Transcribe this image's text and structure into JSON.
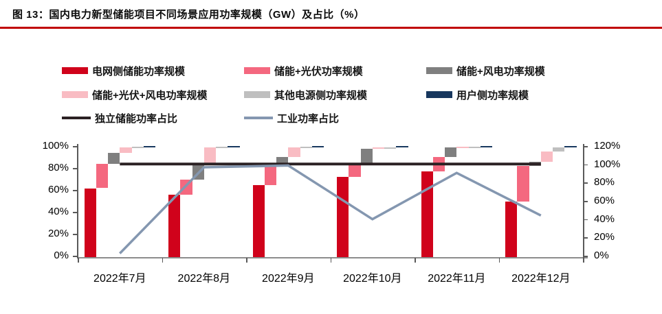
{
  "title": "图 13：国内电力新型储能项目不同场景应用功率规模（GW）及占比（%）",
  "accent_rule_color": "#c00000",
  "legend": {
    "items": [
      {
        "key": "grid-side",
        "label": "电网侧储能功率规模",
        "color": "#d0021b",
        "type": "bar"
      },
      {
        "key": "storage-pv",
        "label": "储能+光伏功率规模",
        "color": "#f4687f",
        "type": "bar"
      },
      {
        "key": "storage-wind",
        "label": "储能+风电功率规模",
        "color": "#7f7f7f",
        "type": "bar"
      },
      {
        "key": "storage-pv-wind",
        "label": "储能+光伏+风电功率规模",
        "color": "#f9bcc3",
        "type": "bar"
      },
      {
        "key": "other-source",
        "label": "其他电源侧功率规模",
        "color": "#bfbfbf",
        "type": "bar"
      },
      {
        "key": "user-side",
        "label": "用户侧功率规模",
        "color": "#17375e",
        "type": "bar"
      },
      {
        "key": "independent-share",
        "label": "独立储能功率占比",
        "color": "#2b2123",
        "type": "line"
      },
      {
        "key": "industry-share",
        "label": "工业功率占比",
        "color": "#8497b0",
        "type": "line"
      }
    ]
  },
  "chart_data": {
    "type": "bar",
    "subtype": "waterfall-stacked-share with overlay lines",
    "categories": [
      "2022年7月",
      "2022年8月",
      "2022年9月",
      "2022年10月",
      "2022年11月",
      "2022年12月"
    ],
    "series": [
      {
        "key": "grid-side",
        "name": "电网侧储能功率规模",
        "color": "#d0021b",
        "values": [
          62,
          56,
          65,
          72,
          77,
          50
        ]
      },
      {
        "key": "storage-pv",
        "name": "储能+光伏功率规模",
        "color": "#f4687f",
        "values": [
          22,
          14,
          18,
          12.5,
          13,
          32
        ]
      },
      {
        "key": "storage-wind",
        "name": "储能+风电功率规模",
        "color": "#7f7f7f",
        "values": [
          10,
          14,
          7,
          13,
          9,
          4
        ]
      },
      {
        "key": "storage-pv-wind",
        "name": "储能+光伏+风电功率规模",
        "color": "#f9bcc3",
        "values": [
          5,
          14.5,
          9,
          1.2,
          0.3,
          9
        ]
      },
      {
        "key": "other-source",
        "name": "其他电源侧功率规模",
        "color": "#bfbfbf",
        "values": [
          0.5,
          0.7,
          0.6,
          0.3,
          0.4,
          3.5
        ]
      },
      {
        "key": "user-side",
        "name": "用户侧功率规模",
        "color": "#17375e",
        "values": [
          0.5,
          0.8,
          0.4,
          1,
          0.3,
          1.5
        ]
      }
    ],
    "lines": [
      {
        "key": "independent-share",
        "name": "独立储能功率占比",
        "color": "#2b2123",
        "axis": "right",
        "width": 4,
        "values": [
          100.5,
          100.5,
          100.5,
          100.5,
          100.5,
          100.5
        ]
      },
      {
        "key": "industry-share",
        "name": "工业功率占比",
        "color": "#8497b0",
        "axis": "right",
        "width": 3.5,
        "values": [
          4,
          97,
          99,
          41,
          91,
          45
        ]
      }
    ],
    "left_axis": {
      "ticks": [
        "0%",
        "20%",
        "40%",
        "60%",
        "80%",
        "100%"
      ],
      "min": 0,
      "max": 100
    },
    "right_axis": {
      "ticks": [
        "0%",
        "20%",
        "40%",
        "60%",
        "80%",
        "100%",
        "120%"
      ],
      "min": 0,
      "max": 120
    },
    "grid": "off",
    "legend_position": "top",
    "note": "每月六段瀑布式占比柱，各月合计100%；两条占比线按右轴绘制"
  }
}
